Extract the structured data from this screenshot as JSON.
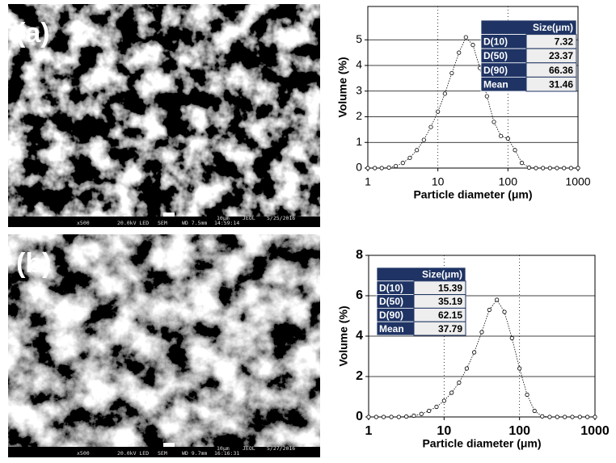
{
  "images": [
    {
      "label": "(a)",
      "info": [
        "x500",
        "20.0kV LED",
        "SEM",
        "WD 7.5mm",
        "14:59:14",
        "10μm",
        "JEOL",
        "5/25/2016"
      ]
    },
    {
      "label": "(b)",
      "info": [
        "x500",
        "20.0kV LED",
        "SEM",
        "WD 9.7mm",
        "16:16:31",
        "10μm",
        "JEOL",
        "5/27/2016"
      ]
    }
  ],
  "chart_data": [
    {
      "type": "line",
      "marker": "circle",
      "log_x": true,
      "grid": true,
      "xlabel": "Particle diameter (μm)",
      "ylabel": "Volume (%)",
      "x": [
        1,
        1.26,
        1.58,
        2,
        2.51,
        3.16,
        3.98,
        5.01,
        6.31,
        7.94,
        10,
        12.6,
        15.8,
        20,
        25.1,
        31.6,
        39.8,
        50.1,
        63.1,
        79.4,
        100,
        126,
        158,
        200,
        251,
        316,
        398,
        501,
        631,
        794,
        1000
      ],
      "series": [
        {
          "color": "#000000",
          "values": [
            0,
            0,
            0,
            0.02,
            0.08,
            0.2,
            0.4,
            0.7,
            1.1,
            1.6,
            2.2,
            2.9,
            3.7,
            4.5,
            5.1,
            4.8,
            3.9,
            2.8,
            1.8,
            1.25,
            1.15,
            0.7,
            0.2,
            0.02,
            0,
            0,
            0,
            0,
            0,
            0,
            0
          ]
        }
      ],
      "xlim": [
        1,
        1000
      ],
      "xticks": [
        1,
        10,
        100,
        1000
      ],
      "ylim": [
        0,
        6.3
      ],
      "yticks": [
        0,
        1,
        2,
        3,
        4,
        5
      ],
      "table": {
        "header": "Size(μm)",
        "rows": [
          [
            "D(10)",
            "7.32"
          ],
          [
            "D(50)",
            "23.37"
          ],
          [
            "D(90)",
            "66.36"
          ],
          [
            "Mean",
            "31.46"
          ]
        ]
      }
    },
    {
      "type": "line",
      "marker": "circle",
      "log_x": true,
      "grid": true,
      "xlabel": "Particle diameter (μm)",
      "ylabel": "Volume (%)",
      "x": [
        1,
        1.26,
        1.58,
        2,
        2.51,
        3.16,
        3.98,
        5.01,
        6.31,
        7.94,
        10,
        12.6,
        15.8,
        20,
        25.1,
        31.6,
        39.8,
        50.1,
        63.1,
        79.4,
        100,
        126,
        158,
        200,
        251,
        316,
        398,
        501,
        631,
        794,
        1000
      ],
      "series": [
        {
          "color": "#000000",
          "values": [
            0,
            0,
            0,
            0,
            0,
            0.02,
            0.06,
            0.15,
            0.3,
            0.5,
            0.8,
            1.2,
            1.7,
            2.4,
            3.2,
            4.2,
            5.3,
            5.8,
            5.2,
            3.9,
            2.4,
            1.1,
            0.3,
            0.03,
            0,
            0,
            0,
            0,
            0,
            0,
            0
          ]
        }
      ],
      "xlim": [
        1,
        1000
      ],
      "xticks": [
        1,
        10,
        100,
        1000
      ],
      "ylim": [
        0,
        8
      ],
      "yticks": [
        0,
        2,
        4,
        6,
        8
      ],
      "table": {
        "header": "Size(μm)",
        "rows": [
          [
            "D(10)",
            "15.39"
          ],
          [
            "D(50)",
            "35.19"
          ],
          [
            "D(90)",
            "62.15"
          ],
          [
            "Mean",
            "37.79"
          ]
        ]
      }
    }
  ]
}
